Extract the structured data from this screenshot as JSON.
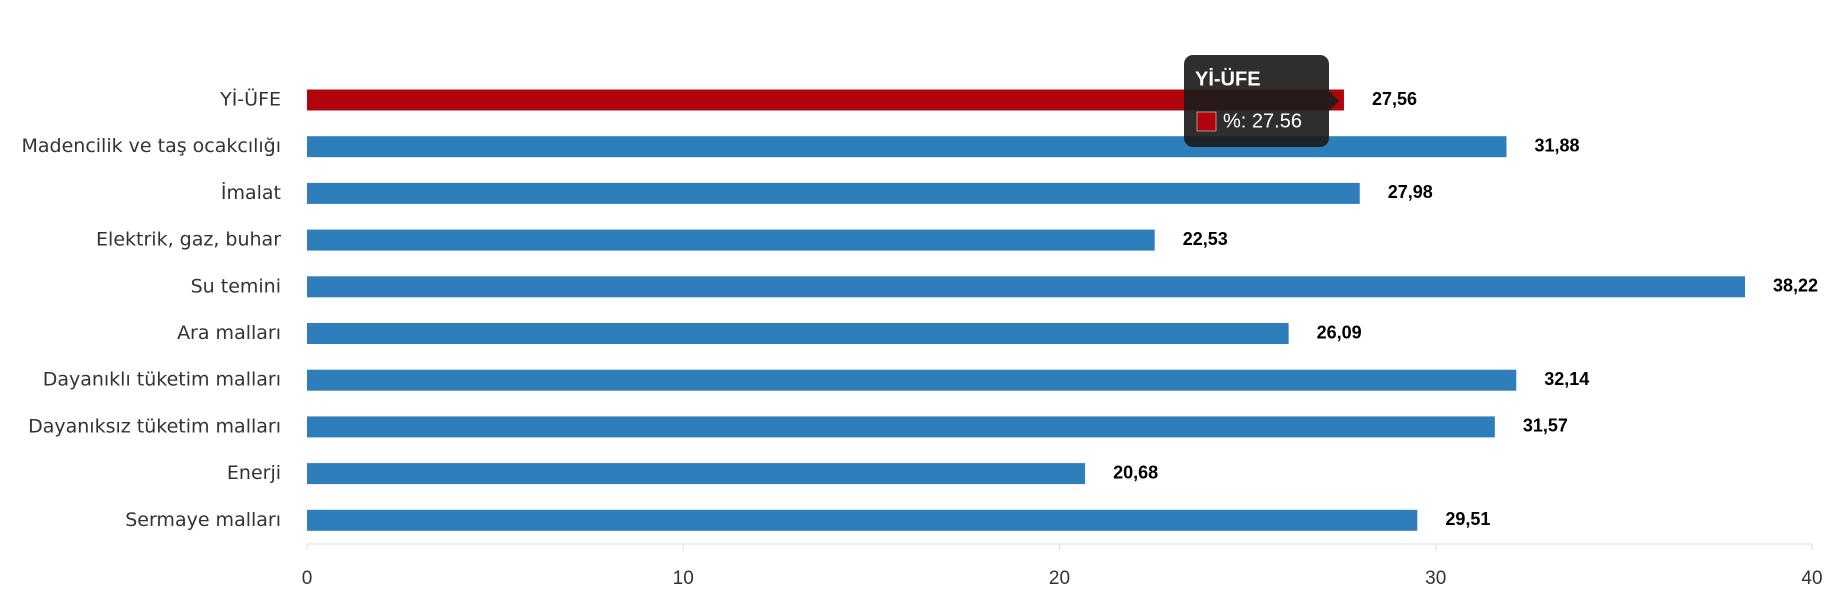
{
  "chart_data": {
    "type": "bar",
    "orientation": "horizontal",
    "categories": [
      "Yİ-ÜFE",
      "Madencilik ve taş ocakcılığı",
      "İmalat",
      "Elektrik, gaz, buhar",
      "Su temini",
      "Ara malları",
      "Dayanıklı tüketim malları",
      "Dayanıksız tüketim malları",
      "Enerji",
      "Sermaye malları"
    ],
    "values": [
      27.56,
      31.88,
      27.98,
      22.53,
      38.22,
      26.09,
      32.14,
      31.57,
      20.68,
      29.51
    ],
    "value_labels": [
      "27,56",
      "31,88",
      "27,98",
      "22,53",
      "38,22",
      "26,09",
      "32,14",
      "31,57",
      "20,68",
      "29,51"
    ],
    "colors": [
      "#b0050c",
      "#2f7ebc",
      "#2f7ebc",
      "#2f7ebc",
      "#2f7ebc",
      "#2f7ebc",
      "#2f7ebc",
      "#2f7ebc",
      "#2f7ebc",
      "#2f7ebc"
    ],
    "xlim": [
      0,
      40
    ],
    "xticks": [
      0,
      10,
      20,
      30,
      40
    ],
    "grid": false,
    "tooltip": {
      "title": "Yİ-ÜFE",
      "text": "%: 27.56"
    }
  }
}
